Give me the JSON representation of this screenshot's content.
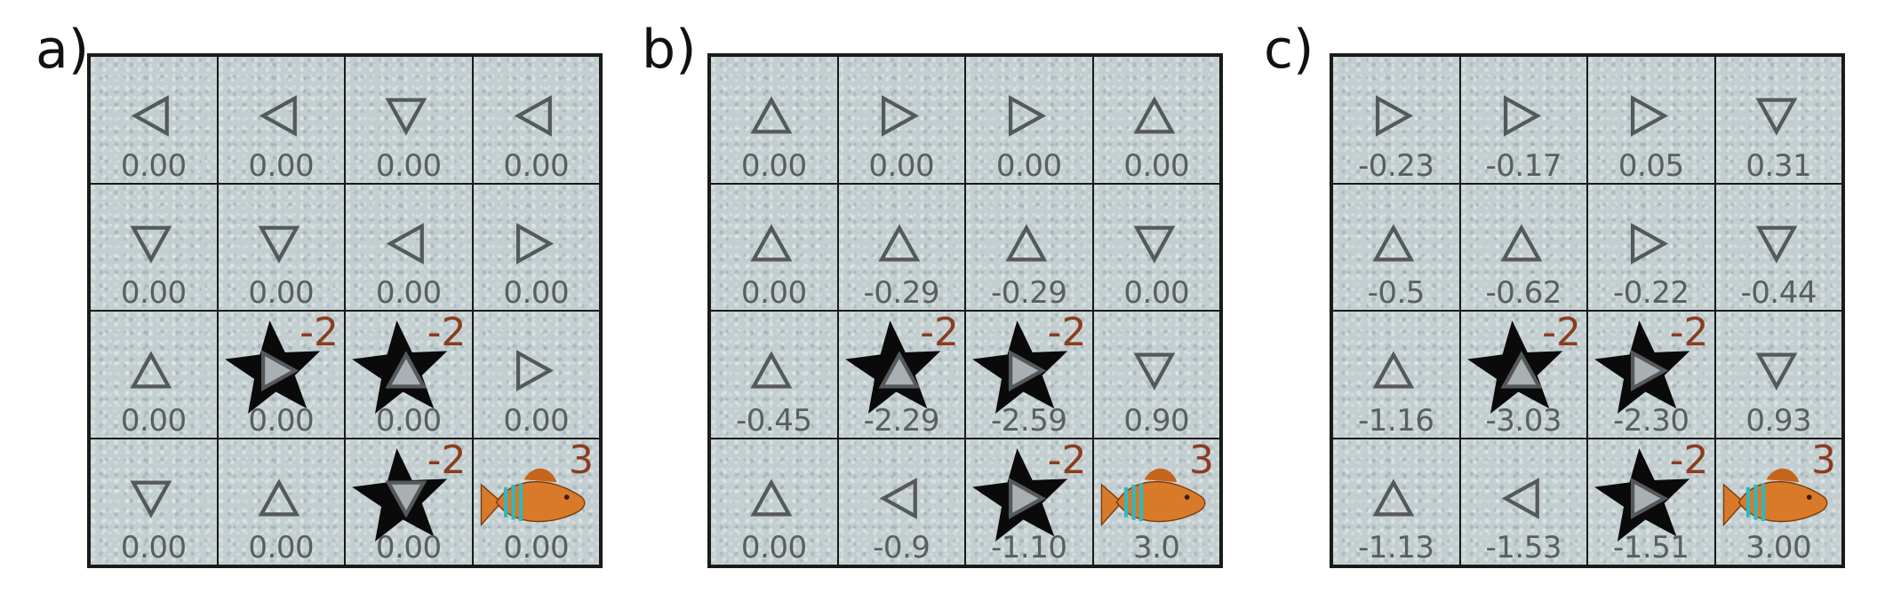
{
  "colors": {
    "arrow": "#55595b",
    "reward": "#8a3d20",
    "value": "#5a5e60",
    "hazard": "#0a0a0a",
    "fish_body": "#d97a2a",
    "fish_stripe": "#2fb8c0"
  },
  "icons": {
    "hazard": "black-star-icon",
    "goal": "fish-icon"
  },
  "panels": [
    {
      "label": "a)",
      "cells": [
        {
          "dir": "left",
          "value": "0.00"
        },
        {
          "dir": "left",
          "value": "0.00"
        },
        {
          "dir": "down",
          "value": "0.00"
        },
        {
          "dir": "left",
          "value": "0.00"
        },
        {
          "dir": "down",
          "value": "0.00"
        },
        {
          "dir": "down",
          "value": "0.00"
        },
        {
          "dir": "left",
          "value": "0.00"
        },
        {
          "dir": "right",
          "value": "0.00"
        },
        {
          "dir": "up",
          "value": "0.00"
        },
        {
          "dir": "right",
          "value": "0.00",
          "hazard": true,
          "reward": "-2"
        },
        {
          "dir": "up",
          "value": "0.00",
          "hazard": true,
          "reward": "-2"
        },
        {
          "dir": "right",
          "value": "0.00"
        },
        {
          "dir": "down",
          "value": "0.00"
        },
        {
          "dir": "up",
          "value": "0.00"
        },
        {
          "dir": "down",
          "value": "0.00",
          "hazard": true,
          "reward": "-2"
        },
        {
          "dir": "none",
          "value": "0.00",
          "goal": true,
          "reward": "3"
        }
      ]
    },
    {
      "label": "b)",
      "cells": [
        {
          "dir": "up",
          "value": "0.00"
        },
        {
          "dir": "right",
          "value": "0.00"
        },
        {
          "dir": "right",
          "value": "0.00"
        },
        {
          "dir": "up",
          "value": "0.00"
        },
        {
          "dir": "up",
          "value": "0.00"
        },
        {
          "dir": "up",
          "value": "-0.29"
        },
        {
          "dir": "up",
          "value": "-0.29"
        },
        {
          "dir": "down",
          "value": "0.00"
        },
        {
          "dir": "up",
          "value": "-0.45"
        },
        {
          "dir": "up",
          "value": "-2.29",
          "hazard": true,
          "reward": "-2"
        },
        {
          "dir": "right",
          "value": "-2.59",
          "hazard": true,
          "reward": "-2"
        },
        {
          "dir": "down",
          "value": "0.90"
        },
        {
          "dir": "up",
          "value": "0.00"
        },
        {
          "dir": "left",
          "value": "-0.9"
        },
        {
          "dir": "right",
          "value": "-1.10",
          "hazard": true,
          "reward": "-2"
        },
        {
          "dir": "none",
          "value": "3.0",
          "goal": true,
          "reward": "3"
        }
      ]
    },
    {
      "label": "c)",
      "cells": [
        {
          "dir": "right",
          "value": "-0.23"
        },
        {
          "dir": "right",
          "value": "-0.17"
        },
        {
          "dir": "right",
          "value": "0.05"
        },
        {
          "dir": "down",
          "value": "0.31"
        },
        {
          "dir": "up",
          "value": "-0.5"
        },
        {
          "dir": "up",
          "value": "-0.62"
        },
        {
          "dir": "right",
          "value": "-0.22"
        },
        {
          "dir": "down",
          "value": "-0.44"
        },
        {
          "dir": "up",
          "value": "-1.16"
        },
        {
          "dir": "up",
          "value": "-3.03",
          "hazard": true,
          "reward": "-2"
        },
        {
          "dir": "right",
          "value": "-2.30",
          "hazard": true,
          "reward": "-2"
        },
        {
          "dir": "down",
          "value": "0.93"
        },
        {
          "dir": "up",
          "value": "-1.13"
        },
        {
          "dir": "left",
          "value": "-1.53"
        },
        {
          "dir": "right",
          "value": "-1.51",
          "hazard": true,
          "reward": "-2"
        },
        {
          "dir": "none",
          "value": "3.00",
          "goal": true,
          "reward": "3"
        }
      ]
    }
  ]
}
